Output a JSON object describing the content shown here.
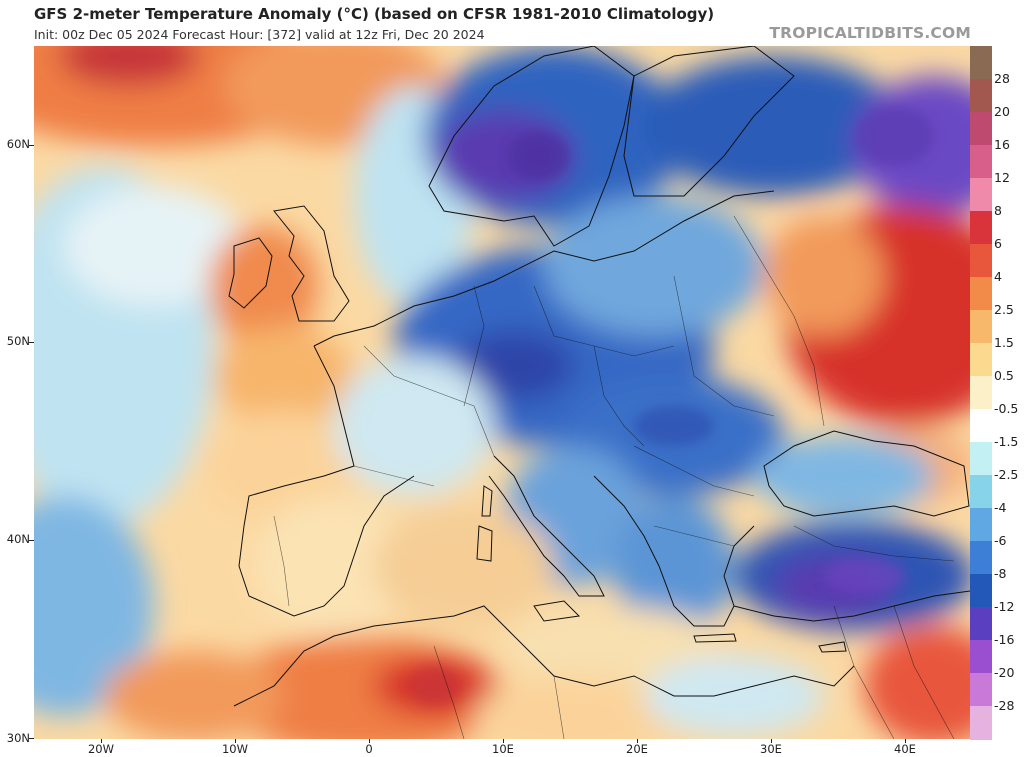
{
  "header": {
    "title": "GFS 2-meter Temperature Anomaly (°C) (based on CFSR 1981-2010 Climatology)",
    "subtitle": "Init: 00z Dec 05 2024   Forecast Hour: [372]   valid at 12z Fri, Dec 20 2024",
    "brand": "TROPICALTIDBITS.COM"
  },
  "map": {
    "latitude_labels": [
      "60N",
      "50N",
      "40N",
      "30N"
    ],
    "longitude_labels": [
      "20W",
      "10W",
      "0",
      "10E",
      "20E",
      "30E",
      "40E"
    ],
    "colors": {
      "warm_strong": "#d7302c",
      "warm": "#f08a4e",
      "warm_light": "#fbd9a3",
      "neutral": "#f6f2e6",
      "cool_light": "#bfe3f1",
      "cool": "#6fa7dd",
      "cold": "#2d63c0",
      "very_cold": "#5a3ab0",
      "border": "#111111"
    }
  },
  "colorbar": {
    "labels": [
      "28",
      "20",
      "16",
      "12",
      "8",
      "6",
      "4",
      "2.5",
      "1.5",
      "0.5",
      "-0.5",
      "-1.5",
      "-2.5",
      "-4",
      "-6",
      "-8",
      "-12",
      "-16",
      "-20",
      "-28"
    ],
    "colors": [
      "#8a6a52",
      "#a2574f",
      "#bf4a6f",
      "#d85f8a",
      "#f08aaa",
      "#d9343b",
      "#e8563c",
      "#f28a4a",
      "#f7b86c",
      "#fbd98f",
      "#fbf0c8",
      "#ffffff",
      "#c3f0f2",
      "#86d3ea",
      "#5fa8e4",
      "#3d7fd6",
      "#2358b8",
      "#5b3fc1",
      "#9a4fd1",
      "#c97ad8",
      "#e6b3e0"
    ]
  }
}
